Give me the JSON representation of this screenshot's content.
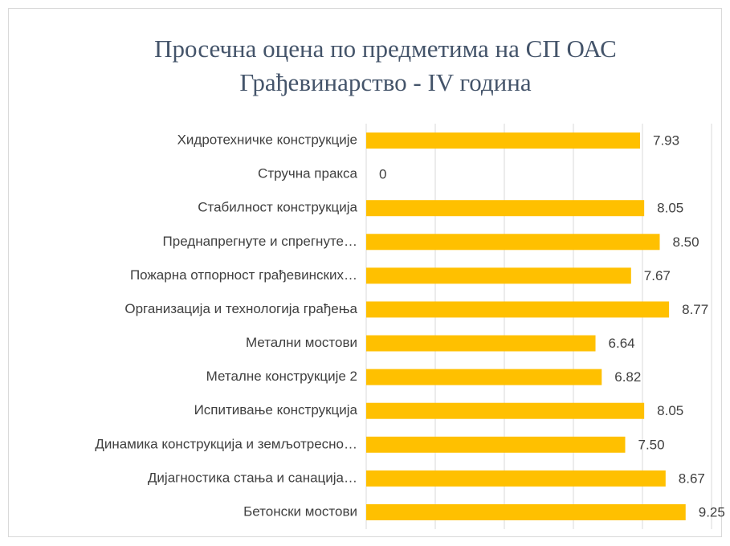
{
  "chart_data": {
    "type": "bar",
    "orientation": "horizontal",
    "title": [
      "Просечна оцена по предметима на СП ОАС",
      "Грађевинарство - IV година"
    ],
    "categories": [
      "Хидротехничке конструкције",
      "Стручна пракса",
      "Стабилност конструкција",
      "Преднапрегнуте и спрегнуте…",
      "Пожарна отпорност грађевинских…",
      "Организација и технологија грађења",
      "Метални мостови",
      "Металне конструкције 2",
      "Испитивање конструкција",
      "Динамика конструкција и земљотресно…",
      "Дијагностика стања и санација…",
      "Бетонски мостови"
    ],
    "values": [
      7.93,
      0,
      8.05,
      8.5,
      7.67,
      8.77,
      6.64,
      6.82,
      8.05,
      7.5,
      8.67,
      9.25
    ],
    "value_labels": [
      "7.93",
      "0",
      "8.05",
      "8.50",
      "7.67",
      "8.77",
      "6.64",
      "6.82",
      "8.05",
      "7.50",
      "8.67",
      "9.25"
    ],
    "color": "#ffc000",
    "xlim": [
      0,
      10
    ],
    "xticks": [
      0,
      2,
      4,
      6,
      8,
      10
    ],
    "grid": true
  }
}
